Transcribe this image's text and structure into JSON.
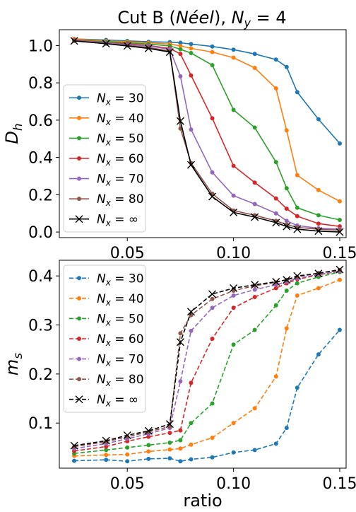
{
  "figure": {
    "title_prefix": "Cut B (",
    "title_italic": "Néel",
    "title_suffix": "), ",
    "title_math": "N",
    "title_math_sub": "y",
    "title_math_value": " = 4"
  },
  "colors": {
    "Nx=30": "#1f77b4",
    "Nx=40": "#ff7f0e",
    "Nx=50": "#2ca02c",
    "Nx=60": "#d62728",
    "Nx=70": "#9467bd",
    "Nx=80": "#8c564b",
    "Nx=inf": "#000000"
  },
  "chart_data": [
    {
      "type": "line",
      "ylabel": "D_h",
      "ylabel_main": "D",
      "ylabel_sub": "h",
      "xlabel": "",
      "xlim": [
        0.018,
        0.153
      ],
      "ylim": [
        -0.03,
        1.085
      ],
      "xticks": [
        0.05,
        0.1,
        0.15
      ],
      "xtick_labels": [
        "0.05",
        "0.10",
        "0.15"
      ],
      "yticks": [
        0.0,
        0.2,
        0.4,
        0.6,
        0.8,
        1.0
      ],
      "ytick_labels": [
        "0.0",
        "0.2",
        "0.4",
        "0.6",
        "0.8",
        "1.0"
      ],
      "grid": false,
      "legend_position": "lower-left",
      "line_style": "solid",
      "x": [
        0.025,
        0.04,
        0.05,
        0.06,
        0.07,
        0.075,
        0.08,
        0.09,
        0.1,
        0.11,
        0.12,
        0.125,
        0.13,
        0.14,
        0.15
      ],
      "series": [
        {
          "name": "N_x = 30",
          "label_value": "30",
          "color_key": "Nx=30",
          "marker": "circle",
          "values": [
            1.035,
            1.03,
            1.025,
            1.02,
            1.018,
            1.015,
            1.008,
            0.995,
            0.978,
            0.955,
            0.925,
            0.885,
            0.75,
            0.605,
            0.475
          ]
        },
        {
          "name": "N_x = 40",
          "label_value": "40",
          "color_key": "Nx=40",
          "marker": "circle",
          "values": [
            1.035,
            1.025,
            1.02,
            1.015,
            1.008,
            0.998,
            0.985,
            0.965,
            0.935,
            0.88,
            0.77,
            0.545,
            0.305,
            0.225,
            0.165
          ]
        },
        {
          "name": "N_x = 50",
          "label_value": "50",
          "color_key": "Nx=50",
          "marker": "circle",
          "values": [
            1.03,
            1.02,
            1.015,
            1.008,
            0.998,
            0.98,
            0.96,
            0.895,
            0.655,
            0.56,
            0.375,
            0.235,
            0.13,
            0.09,
            0.065
          ]
        },
        {
          "name": "N_x = 60",
          "label_value": "60",
          "color_key": "Nx=60",
          "marker": "circle",
          "values": [
            1.03,
            1.015,
            1.01,
            1.0,
            0.985,
            0.955,
            0.84,
            0.61,
            0.355,
            0.265,
            0.18,
            0.125,
            0.085,
            0.045,
            0.03
          ]
        },
        {
          "name": "N_x = 70",
          "label_value": "70",
          "color_key": "Nx=70",
          "marker": "circle",
          "values": [
            1.028,
            1.015,
            1.005,
            0.998,
            0.98,
            0.835,
            0.55,
            0.32,
            0.195,
            0.15,
            0.1,
            0.06,
            0.035,
            0.02,
            0.015
          ]
        },
        {
          "name": "N_x = 80",
          "label_value": "80",
          "color_key": "Nx=80",
          "marker": "circle",
          "values": [
            1.025,
            1.01,
            1.0,
            0.99,
            0.97,
            0.555,
            0.37,
            0.205,
            0.115,
            0.09,
            0.06,
            0.04,
            0.025,
            0.015,
            0.01
          ]
        },
        {
          "name": "N_x = ∞",
          "label_value": "∞",
          "color_key": "Nx=inf",
          "marker": "x",
          "values": [
            1.025,
            1.01,
            0.998,
            0.985,
            0.965,
            0.595,
            0.36,
            0.19,
            0.105,
            0.08,
            0.05,
            0.03,
            0.015,
            0.005,
            0.0
          ]
        }
      ]
    },
    {
      "type": "line",
      "ylabel": "m_s",
      "ylabel_main": "m",
      "ylabel_sub": "s",
      "xlabel": "ratio",
      "xlim": [
        0.018,
        0.153
      ],
      "ylim": [
        0.008,
        0.432
      ],
      "xticks": [
        0.05,
        0.1,
        0.15
      ],
      "xtick_labels": [
        "0.05",
        "0.10",
        "0.15"
      ],
      "yticks": [
        0.1,
        0.2,
        0.3,
        0.4
      ],
      "ytick_labels": [
        "0.1",
        "0.2",
        "0.3",
        "0.4"
      ],
      "grid": false,
      "legend_position": "upper-left",
      "line_style": "dashed",
      "x": [
        0.025,
        0.04,
        0.05,
        0.06,
        0.07,
        0.075,
        0.08,
        0.09,
        0.1,
        0.11,
        0.12,
        0.125,
        0.13,
        0.14,
        0.15
      ],
      "series": [
        {
          "name": "N_x = 30",
          "label_value": "30",
          "color_key": "Nx=30",
          "marker": "circle",
          "values": [
            0.023,
            0.025,
            0.022,
            0.027,
            0.028,
            0.022,
            0.026,
            0.03,
            0.04,
            0.045,
            0.058,
            0.09,
            0.172,
            0.24,
            0.29
          ]
        },
        {
          "name": "N_x = 40",
          "label_value": "40",
          "color_key": "Nx=40",
          "marker": "circle",
          "values": [
            0.033,
            0.035,
            0.036,
            0.042,
            0.046,
            0.048,
            0.056,
            0.07,
            0.1,
            0.13,
            0.195,
            0.293,
            0.36,
            0.375,
            0.392
          ]
        },
        {
          "name": "N_x = 50",
          "label_value": "50",
          "color_key": "Nx=50",
          "marker": "circle",
          "values": [
            0.038,
            0.045,
            0.05,
            0.055,
            0.06,
            0.065,
            0.1,
            0.14,
            0.26,
            0.29,
            0.34,
            0.37,
            0.385,
            0.398,
            0.408
          ]
        },
        {
          "name": "N_x = 60",
          "label_value": "60",
          "color_key": "Nx=60",
          "marker": "circle",
          "values": [
            0.043,
            0.052,
            0.063,
            0.072,
            0.08,
            0.085,
            0.182,
            0.272,
            0.335,
            0.357,
            0.375,
            0.385,
            0.393,
            0.402,
            0.41
          ]
        },
        {
          "name": "N_x = 70",
          "label_value": "70",
          "color_key": "Nx=70",
          "marker": "circle",
          "values": [
            0.048,
            0.058,
            0.068,
            0.078,
            0.09,
            0.185,
            0.288,
            0.335,
            0.36,
            0.372,
            0.382,
            0.388,
            0.395,
            0.403,
            0.41
          ]
        },
        {
          "name": "N_x = 80",
          "label_value": "80",
          "color_key": "Nx=80",
          "marker": "circle",
          "values": [
            0.052,
            0.062,
            0.072,
            0.082,
            0.093,
            0.283,
            0.32,
            0.353,
            0.37,
            0.38,
            0.387,
            0.392,
            0.398,
            0.406,
            0.412
          ]
        },
        {
          "name": "N_x = ∞",
          "label_value": "∞",
          "color_key": "Nx=inf",
          "marker": "x",
          "values": [
            0.054,
            0.064,
            0.075,
            0.084,
            0.098,
            0.265,
            0.327,
            0.363,
            0.375,
            0.382,
            0.388,
            0.392,
            0.4,
            0.405,
            0.413
          ]
        }
      ]
    }
  ]
}
